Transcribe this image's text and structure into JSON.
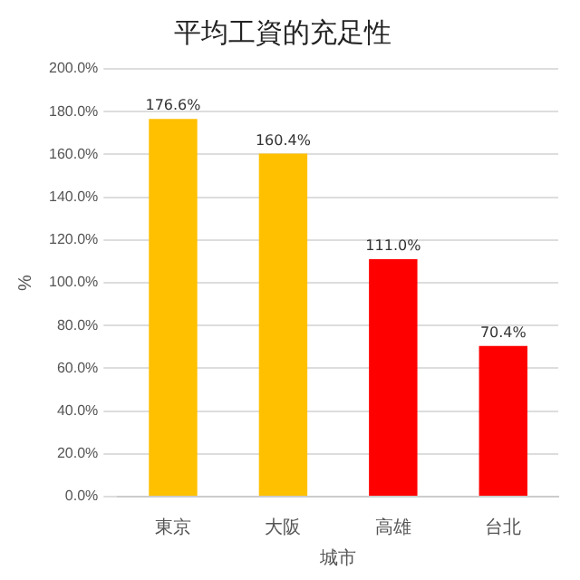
{
  "chart_data": {
    "type": "bar",
    "title": "平均工資的充足性",
    "xlabel": "城市",
    "ylabel": "%",
    "categories": [
      "東京",
      "大阪",
      "高雄",
      "台北"
    ],
    "values": [
      176.6,
      160.4,
      111.0,
      70.4
    ],
    "colors": [
      "#ffc000",
      "#ffc000",
      "#ff0000",
      "#ff0000"
    ],
    "value_labels": [
      "176.6%",
      "160.4%",
      "111.0%",
      "70.4%"
    ],
    "ylim": [
      0,
      200
    ],
    "yticks": [
      {
        "value": 0,
        "label": "0.0%"
      },
      {
        "value": 20,
        "label": "20.0%"
      },
      {
        "value": 40,
        "label": "40.0%"
      },
      {
        "value": 60,
        "label": "60.0%"
      },
      {
        "value": 80,
        "label": "80.0%"
      },
      {
        "value": 100,
        "label": "100.0%"
      },
      {
        "value": 120,
        "label": "120.0%"
      },
      {
        "value": 140,
        "label": "140.0%"
      },
      {
        "value": 160,
        "label": "160.0%"
      },
      {
        "value": 180,
        "label": "180.0%"
      },
      {
        "value": 200,
        "label": "200.0%"
      }
    ],
    "grid": "y",
    "legend": false
  }
}
